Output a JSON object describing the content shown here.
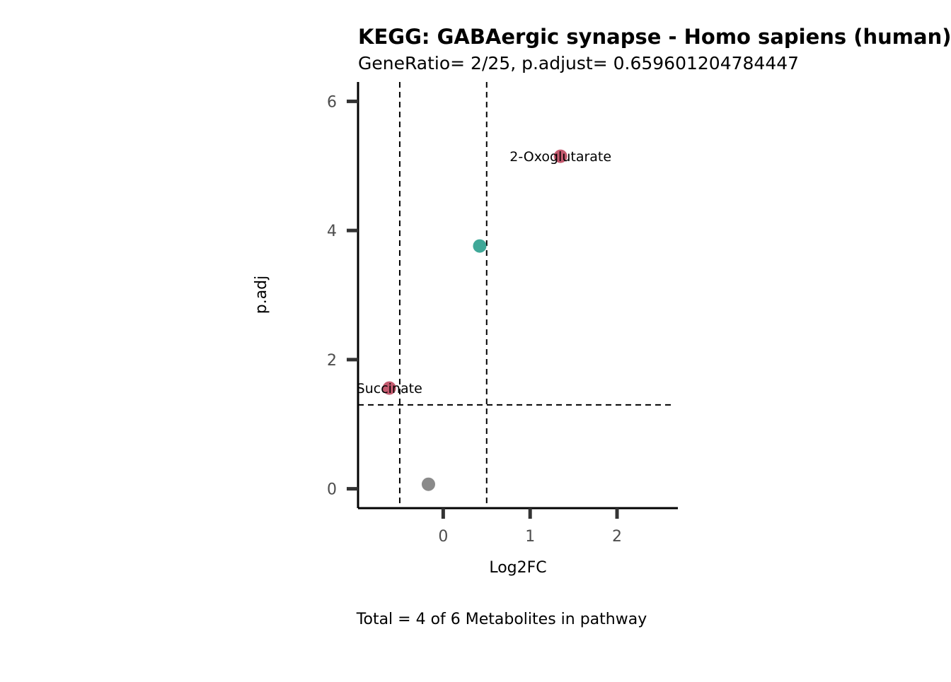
{
  "chart_data": {
    "type": "scatter",
    "title": "KEGG: GABAergic synapse - Homo sapiens (human)",
    "subtitle": "GeneRatio= 2/25, p.adjust= 0.659601204784447",
    "xlabel": "Log2FC",
    "ylabel": "p.adj",
    "caption": "Total = 4 of 6 Metabolites in pathway",
    "xlim": [
      -0.98,
      2.7
    ],
    "ylim": [
      -0.3,
      6.3
    ],
    "xticks": [
      0,
      1,
      2
    ],
    "yticks": [
      0,
      2,
      4,
      6
    ],
    "grid": false,
    "thresholds": {
      "vlines": [
        -0.5,
        0.5
      ],
      "hline": 1.3
    },
    "points": [
      {
        "x": 1.35,
        "y": 5.15,
        "label": "2-Oxoglutarate",
        "color": "#c45a6f"
      },
      {
        "x": 0.42,
        "y": 3.76,
        "label": "",
        "color": "#3fa898"
      },
      {
        "x": -0.62,
        "y": 1.56,
        "label": "Succinate",
        "color": "#c45a6f"
      },
      {
        "x": -0.17,
        "y": 0.07,
        "label": "",
        "color": "#8a8a8a"
      }
    ]
  }
}
